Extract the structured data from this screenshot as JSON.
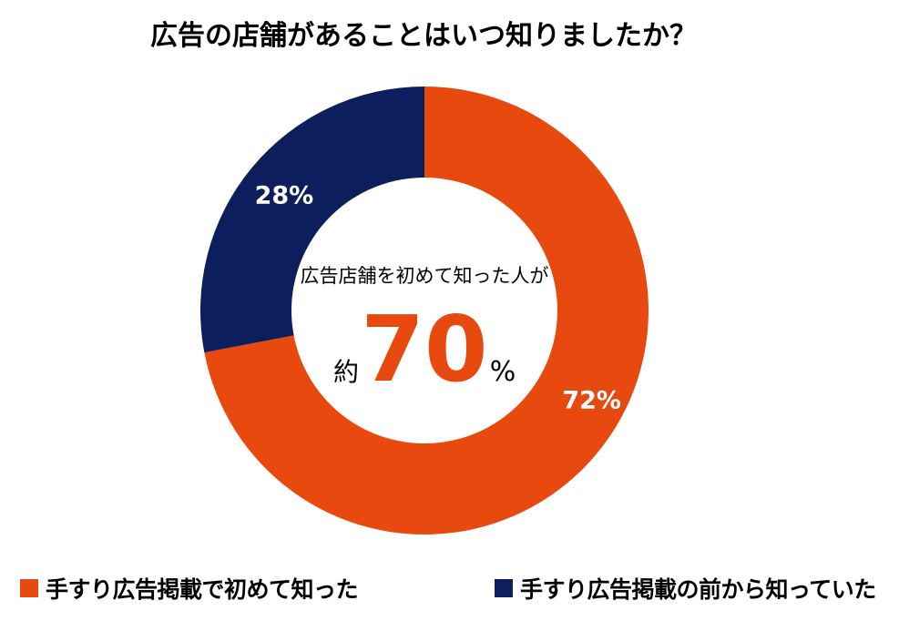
{
  "title": "広告の店舗があることはいつ知りましたか？",
  "colors": {
    "primary": "#E8490F",
    "secondary": "#0C1F5C",
    "text": "#000000",
    "label_text": "#FFFFFF"
  },
  "center": {
    "caption": "広告店舗を初めて知った人が",
    "prefix": "約",
    "value": "70",
    "suffix": "%"
  },
  "chart_data": {
    "type": "pie",
    "donut": true,
    "title": "広告の店舗があることはいつ知りましたか？",
    "categories": [
      "手すり広告掲載で初めて知った",
      "手すり広告掲載の前から知っていた"
    ],
    "values": [
      72,
      28
    ],
    "data_labels": [
      "72%",
      "28%"
    ],
    "colors": [
      "#E8490F",
      "#0C1F5C"
    ],
    "legend_position": "bottom",
    "start_angle_deg": 0,
    "direction": "clockwise"
  }
}
